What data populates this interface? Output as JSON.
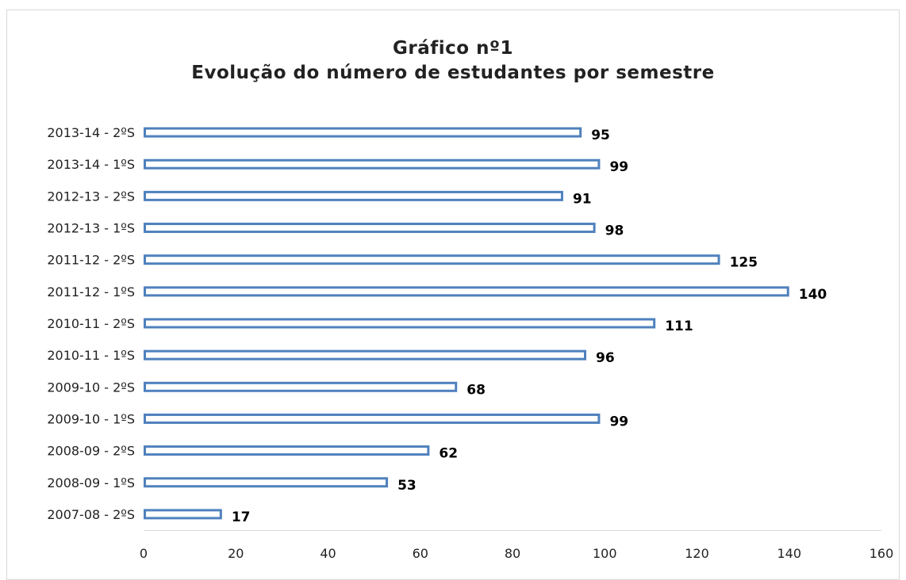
{
  "chart_data": {
    "type": "bar",
    "orientation": "horizontal",
    "title": [
      "Gráfico nº1",
      "Evolução do número de estudantes por semestre"
    ],
    "categories": [
      "2007-08 - 2ºS",
      "2008-09 - 1ºS",
      "2008-09 - 2ºS",
      "2009-10 - 1ºS",
      "2009-10 - 2ºS",
      "2010-11 - 1ºS",
      "2010-11 - 2ºS",
      "2011-12 - 1ºS",
      "2011-12 - 2ºS",
      "2012-13 - 1ºS",
      "2012-13 - 2ºS",
      "2013-14 - 1ºS",
      "2013-14 - 2ºS"
    ],
    "values": [
      17,
      53,
      62,
      99,
      68,
      96,
      111,
      140,
      125,
      98,
      91,
      99,
      95
    ],
    "xlim": [
      0,
      160
    ],
    "xticks": [
      0,
      20,
      40,
      60,
      80,
      100,
      120,
      140,
      160
    ],
    "bar_color": "#4f81bd",
    "data_labels": true,
    "grid": false,
    "legend": "none"
  }
}
